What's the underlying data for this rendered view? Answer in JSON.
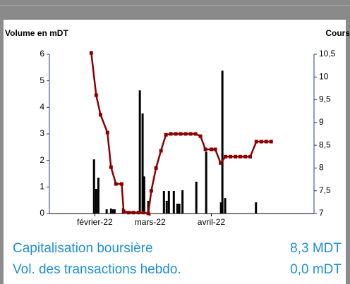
{
  "chart_data": {
    "type": "bar",
    "y_label": "Volume en mDT",
    "y2_label": "Cours",
    "xlim": [
      9,
      143
    ],
    "xticks": [
      {
        "value": 32,
        "label": "février-22"
      },
      {
        "value": 60,
        "label": "mars-22"
      },
      {
        "value": 91,
        "label": "avril-22"
      }
    ],
    "ylim": [
      0,
      6
    ],
    "yticks": [
      0,
      1,
      2,
      3,
      4,
      5,
      6
    ],
    "y2lim": [
      7,
      10.5
    ],
    "y2ticks": [
      7,
      {
        "value": 7.5,
        "label": "7,5"
      },
      8,
      {
        "value": 8.5,
        "label": "8,5"
      },
      9,
      {
        "value": 9.5,
        "label": "9,5"
      },
      10,
      {
        "value": 10.5,
        "label": "10,5"
      }
    ],
    "series": [
      {
        "type": "bar",
        "color": "#000000",
        "x": [
          31.6,
          32.7,
          33.8,
          38,
          40.2,
          41.3,
          42,
          46.3,
          50.4,
          54.8,
          56.2,
          57,
          59.1,
          67,
          68.4,
          69.5,
          72,
          73.8,
          74.8,
          76.4,
          83.4,
          88.4,
          95.9,
          96.6,
          98,
          113.6
        ],
        "values": [
          2.04,
          0.93,
          1.35,
          0.16,
          0.19,
          0.16,
          0.16,
          0.2,
          0.08,
          4.64,
          3.77,
          1.4,
          0.48,
          0.85,
          0.48,
          0.85,
          0.85,
          0.37,
          0.37,
          0.88,
          1.2,
          2.33,
          0.42,
          5.38,
          0.58,
          0.42
        ]
      },
      {
        "type": "line",
        "axis": "y2",
        "color": "#8b0000",
        "x": [
          30.2,
          32.7,
          34.9,
          38.4,
          40.2,
          42.7,
          45.6,
          46.6,
          49.1,
          51.6,
          54.1,
          56.6,
          59.1,
          60.6,
          63,
          65.5,
          68,
          70.5,
          73,
          75.5,
          78,
          80.5,
          83,
          85.5,
          88,
          91,
          93,
          95.7,
          98.2,
          100.7,
          103.2,
          105.7,
          108.2,
          110.7,
          113.8,
          116.3,
          118.8,
          121.3
        ],
        "values": [
          10.53,
          9.6,
          9.17,
          8.78,
          8.02,
          7.65,
          7.65,
          7.05,
          7.02,
          7.02,
          7.02,
          7.02,
          7.0,
          7.5,
          8.0,
          8.38,
          8.73,
          8.75,
          8.75,
          8.75,
          8.75,
          8.75,
          8.75,
          8.7,
          8.41,
          8.41,
          8.41,
          8.11,
          8.25,
          8.25,
          8.25,
          8.25,
          8.25,
          8.25,
          8.58,
          8.58,
          8.58,
          8.58
        ]
      }
    ]
  },
  "info": {
    "rows": [
      {
        "label": "Capitalisation boursière",
        "value": "8,3 MDT"
      },
      {
        "label": "Vol. des transactions hebdo.",
        "value": "0,0 mDT"
      }
    ]
  }
}
